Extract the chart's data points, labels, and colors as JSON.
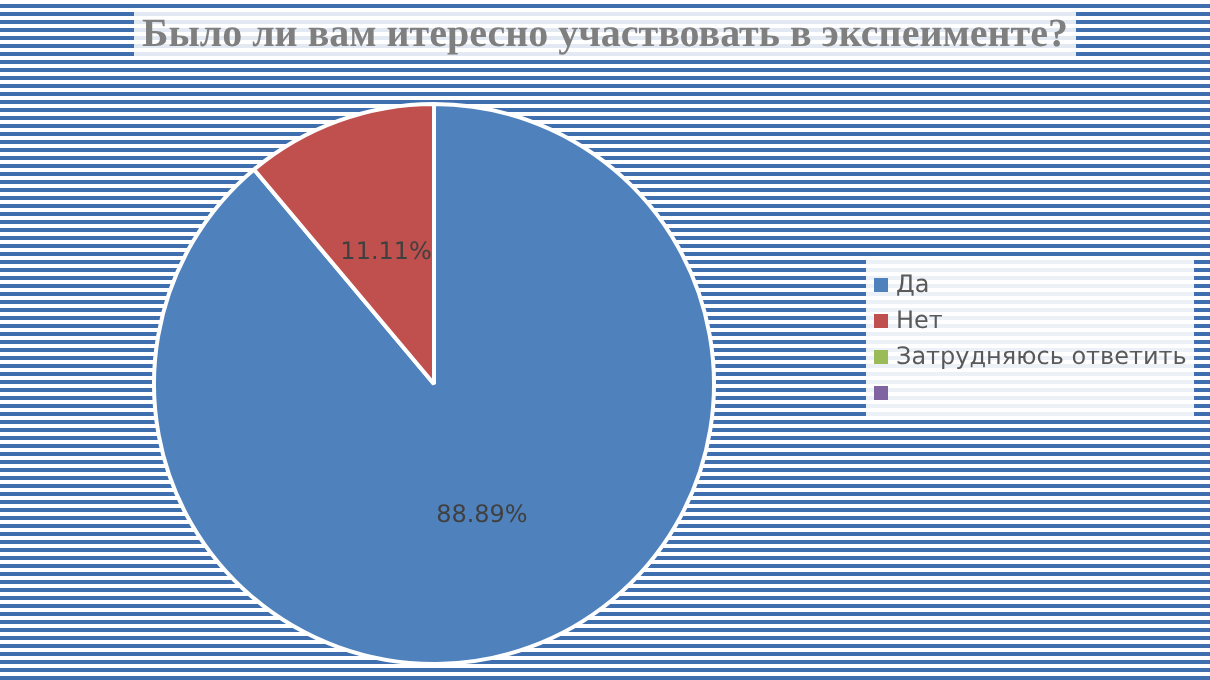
{
  "chart_data": {
    "type": "pie",
    "title": "Было ли вам итересно участвовать в экспеименте?",
    "categories": [
      "Да",
      "Нет",
      "Затрудняюсь ответить",
      null
    ],
    "values": [
      88.89,
      11.11,
      0,
      0
    ],
    "colors": [
      "#4f81bd",
      "#c0504d",
      "#9bbb59",
      "#8064a2"
    ],
    "value_labels": [
      "88.89%",
      "11.11%",
      null,
      null
    ],
    "legend": "right"
  }
}
